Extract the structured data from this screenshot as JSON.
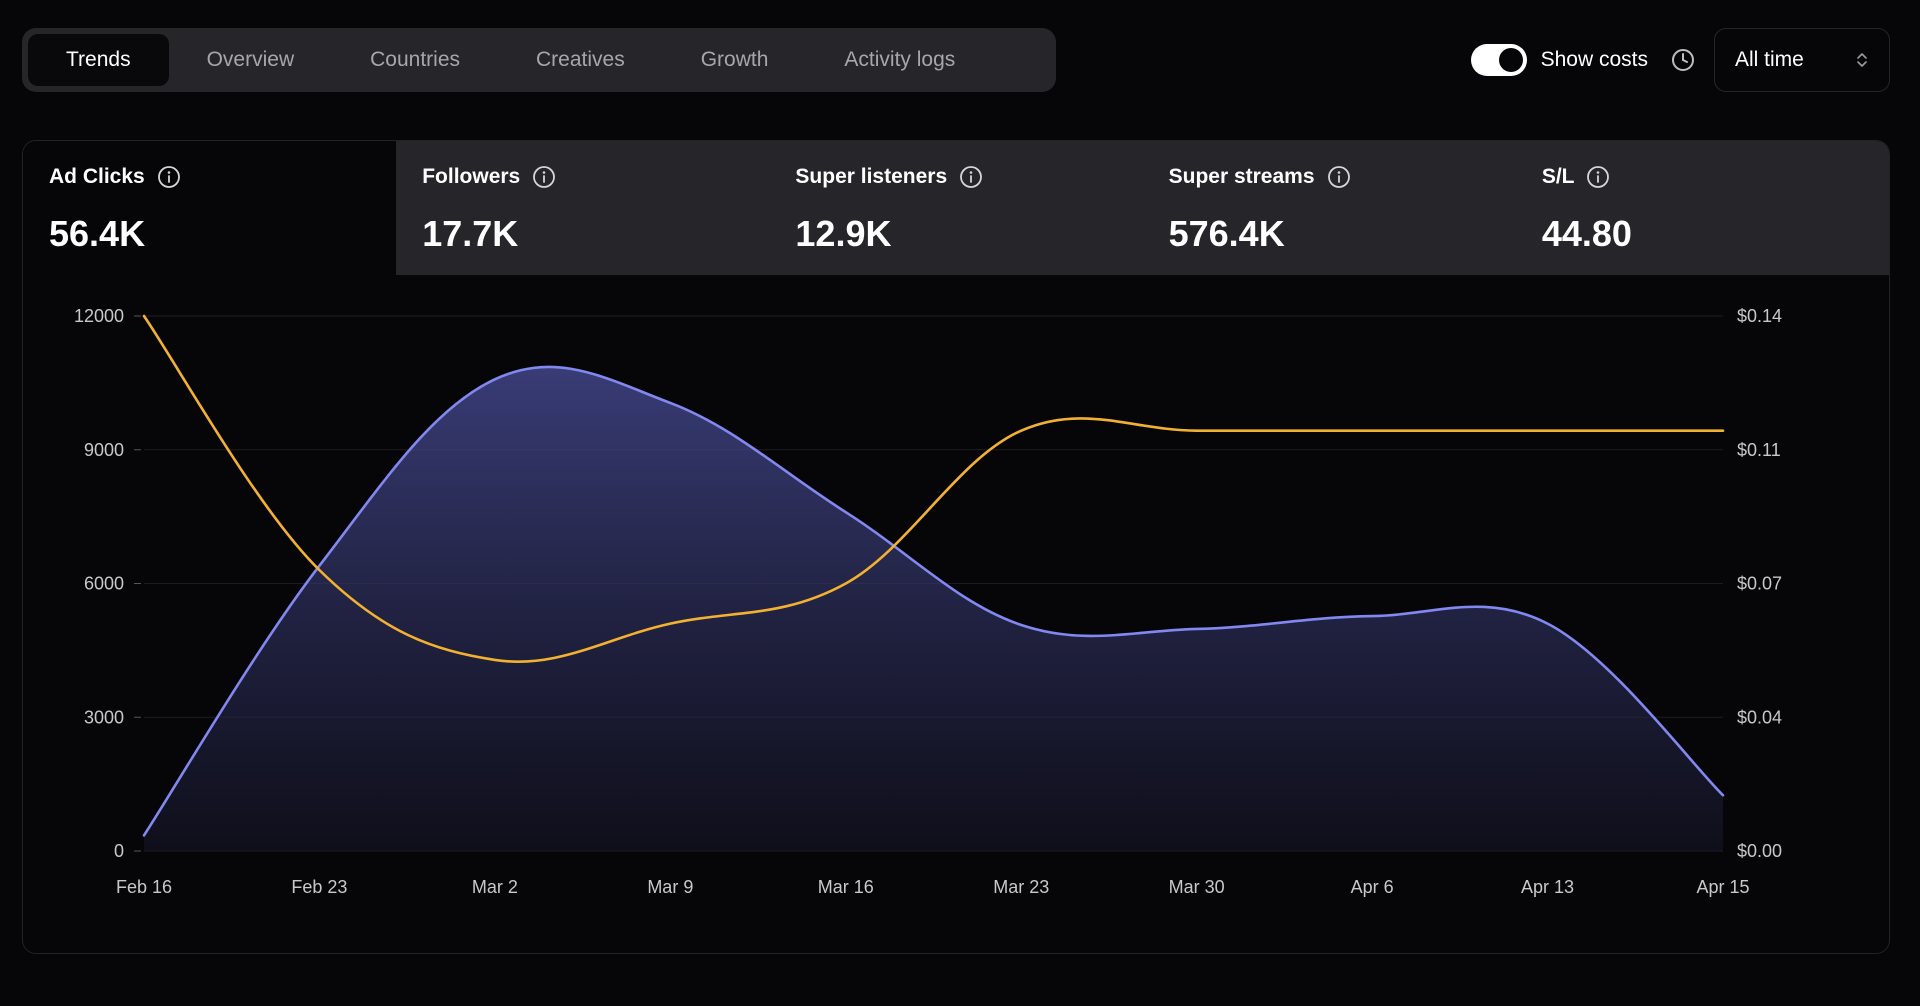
{
  "tabs": [
    {
      "label": "Trends",
      "active": true
    },
    {
      "label": "Overview",
      "active": false
    },
    {
      "label": "Countries",
      "active": false
    },
    {
      "label": "Creatives",
      "active": false
    },
    {
      "label": "Growth",
      "active": false
    },
    {
      "label": "Activity logs",
      "active": false
    }
  ],
  "controls": {
    "show_costs_label": "Show costs",
    "show_costs_on": true,
    "range_value": "All time",
    "clock_icon": "clock-icon",
    "select_icon": "chevron-up-down-icon"
  },
  "metrics": [
    {
      "label": "Ad Clicks",
      "value": "56.4K",
      "active": true
    },
    {
      "label": "Followers",
      "value": "17.7K",
      "active": false
    },
    {
      "label": "Super listeners",
      "value": "12.9K",
      "active": false
    },
    {
      "label": "Super streams",
      "value": "576.4K",
      "active": false
    },
    {
      "label": "S/L",
      "value": "44.80",
      "active": false
    }
  ],
  "colors": {
    "clicks_line": "#8288f0",
    "cost_line": "#f3b132",
    "background": "#060609",
    "panel": "#26262a"
  },
  "chart_data": {
    "type": "line",
    "x": [
      "Feb 16",
      "Feb 23",
      "Mar 2",
      "Mar 9",
      "Mar 16",
      "Mar 23",
      "Mar 30",
      "Apr 6",
      "Apr 13",
      "Apr 15"
    ],
    "x_tick_labels": [
      "Feb 16",
      "Feb 23",
      "Mar 2",
      "Mar 9",
      "Mar 16",
      "Mar 23",
      "Mar 30",
      "Apr 6",
      "Apr 13",
      "Apr 15"
    ],
    "y_left_ticks": [
      "0",
      "3000",
      "6000",
      "9000",
      "12000"
    ],
    "y_left_range": [
      0,
      12000
    ],
    "y_right_ticks": [
      "$0.00",
      "$0.04",
      "$0.07",
      "$0.11",
      "$0.14"
    ],
    "y_right_range": [
      0,
      0.14
    ],
    "grid": true,
    "series": [
      {
        "axis": "left",
        "area": true,
        "color": "#8288f0",
        "values": [
          350,
          6400,
          10580,
          10050,
          7600,
          5070,
          4980,
          5270,
          5100,
          1250
        ]
      },
      {
        "axis": "right",
        "area": false,
        "color": "#f3b132",
        "values": [
          0.14,
          0.0735,
          0.05,
          0.0595,
          0.07,
          0.11,
          0.11,
          0.11,
          0.11,
          0.11
        ]
      }
    ]
  }
}
